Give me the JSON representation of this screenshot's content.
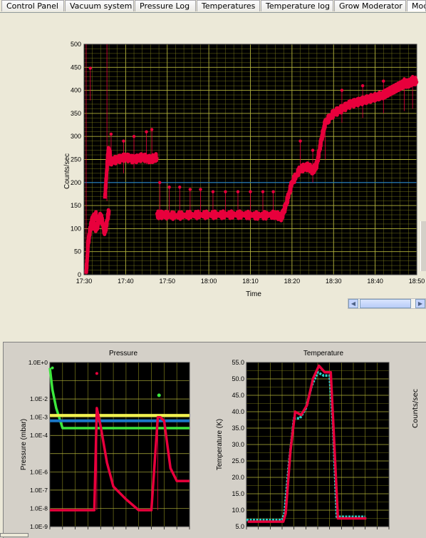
{
  "tabs": [
    {
      "label": "Control Panel",
      "active": false
    },
    {
      "label": "Vacuum system",
      "active": false
    },
    {
      "label": "Pressure Log",
      "active": false
    },
    {
      "label": "Temperatures",
      "active": false
    },
    {
      "label": "Temperature log",
      "active": false
    },
    {
      "label": "Grow Moderator",
      "active": false
    },
    {
      "label": "Mod",
      "active": true
    }
  ],
  "side_label": "Counts/sec",
  "colors": {
    "plot_bg": "#000000",
    "grid": "#8c8c1e",
    "red": "#e8003c",
    "blue_line": "#1a78c8",
    "green": "#3ce63c",
    "yellow": "#f0f050",
    "cyan": "#28d2c8"
  },
  "chart_data": [
    {
      "type": "scatter",
      "title": "",
      "xlabel": "Time",
      "ylabel": "Counts/sec",
      "x_ticks": [
        "17:30",
        "17:40",
        "17:50",
        "18:00",
        "18:10",
        "18:20",
        "18:30",
        "18:40",
        "18:50"
      ],
      "y_ticks": [
        "0",
        "50",
        "100",
        "150",
        "200",
        "250",
        "300",
        "350",
        "400",
        "450",
        "500"
      ],
      "ylim": [
        0,
        500
      ],
      "xlim_minutes": [
        0,
        80
      ],
      "reference_line": 200,
      "grid": true,
      "series": [
        {
          "color": "#e8003c",
          "segments": [
            {
              "x": [
                0.5,
                1.0,
                1.5,
                2.0,
                3.0
              ],
              "y": [
                2,
                70,
                100,
                120,
                130
              ]
            },
            {
              "x": [
                2,
                3,
                4,
                5,
                6
              ],
              "y": [
                110,
                100,
                130,
                90,
                140
              ]
            },
            {
              "x": [
                5,
                5.8,
                6.3
              ],
              "y": [
                165,
                270,
                260
              ]
            },
            {
              "x": [
                6,
                8,
                10,
                12,
                14,
                16,
                17.5
              ],
              "y": [
                245,
                250,
                255,
                250,
                255,
                250,
                255
              ]
            },
            {
              "x": [
                17.5,
                19,
                22,
                26,
                30,
                34,
                38,
                42,
                46,
                47.5
              ],
              "y": [
                130,
                130,
                128,
                130,
                130,
                130,
                130,
                128,
                130,
                125
              ]
            },
            {
              "x": [
                47.5,
                48.5,
                50,
                52,
                54,
                55,
                56,
                57,
                58,
                60,
                62,
                64,
                66,
                68,
                70,
                72,
                73,
                74,
                75,
                76,
                77,
                78,
                79,
                80
              ],
              "y": [
                125,
                150,
                200,
                230,
                235,
                225,
                240,
                290,
                330,
                350,
                360,
                370,
                375,
                380,
                385,
                390,
                395,
                400,
                405,
                410,
                415,
                415,
                420,
                420
              ]
            }
          ],
          "spikes": [
            {
              "x": 1.5,
              "y": 448
            },
            {
              "x": 6.5,
              "y": 305
            },
            {
              "x": 9.5,
              "y": 290
            },
            {
              "x": 12,
              "y": 300
            },
            {
              "x": 15,
              "y": 310
            },
            {
              "x": 16.3,
              "y": 315
            },
            {
              "x": 18.2,
              "y": 200
            },
            {
              "x": 20.5,
              "y": 190
            },
            {
              "x": 23,
              "y": 190
            },
            {
              "x": 25.5,
              "y": 185
            },
            {
              "x": 28,
              "y": 185
            },
            {
              "x": 31,
              "y": 180
            },
            {
              "x": 34,
              "y": 180
            },
            {
              "x": 37,
              "y": 180
            },
            {
              "x": 40,
              "y": 180
            },
            {
              "x": 43,
              "y": 180
            },
            {
              "x": 45.5,
              "y": 180
            },
            {
              "x": 52,
              "y": 290
            },
            {
              "x": 55,
              "y": 270
            },
            {
              "x": 58,
              "y": 320
            },
            {
              "x": 62,
              "y": 400
            },
            {
              "x": 67,
              "y": 410
            },
            {
              "x": 72,
              "y": 420
            },
            {
              "x": 77,
              "y": 425
            },
            {
              "x": 79,
              "y": 430
            }
          ]
        }
      ]
    },
    {
      "type": "scatter",
      "title": "Pressure",
      "xlabel": "",
      "ylabel": "Pressure (mbar)",
      "y_ticks": [
        "1.0E+0",
        "1.0E-2",
        "1.0E-3",
        "1.0E-4",
        "1.0E-6",
        "1.0E-7",
        "1.0E-8",
        "1.0E-9"
      ],
      "y_tick_exponents": [
        0,
        -1,
        -2,
        -3,
        -4,
        -5,
        -6,
        -7,
        -8,
        -9
      ],
      "ylim_log10": [
        -9,
        0
      ],
      "grid": true,
      "series": [
        {
          "color": "#3ce63c",
          "x": [
            0,
            0.2,
            0.5,
            1,
            2,
            3,
            4,
            5,
            6,
            7,
            8,
            9,
            10,
            11
          ],
          "y_log10": [
            -0.3,
            -1.5,
            -2.5,
            -3.6,
            -3.6,
            -3.6,
            -3.6,
            -3.6,
            -3.6,
            -3.6,
            -3.6,
            -3.6,
            -3.6,
            -3.6
          ]
        },
        {
          "color": "#f0f050",
          "x": [
            0,
            11
          ],
          "y_log10": [
            -2.9,
            -2.9
          ]
        },
        {
          "color": "#1a78c8",
          "x": [
            0,
            11
          ],
          "y_log10": [
            -3.2,
            -3.2
          ]
        },
        {
          "color": "#e8003c",
          "x": [
            0,
            1,
            2,
            3,
            3.5,
            3.7,
            4,
            4.5,
            5,
            6,
            7,
            8,
            8.5,
            8.7,
            9,
            9.5,
            10,
            10.5,
            11
          ],
          "y_log10": [
            -8.1,
            -8.1,
            -8.1,
            -8.1,
            -8.1,
            -2.5,
            -3.5,
            -5.5,
            -6.8,
            -7.5,
            -8.1,
            -8.1,
            -3.0,
            -3.0,
            -3.2,
            -5.8,
            -6.5,
            -6.5,
            -6.5
          ]
        }
      ]
    },
    {
      "type": "scatter",
      "title": "Temperature",
      "xlabel": "",
      "ylabel": "Temperature (K)",
      "y_ticks": [
        "5.0",
        "10.0",
        "15.0",
        "20.0",
        "25.0",
        "30.0",
        "35.0",
        "40.0",
        "45.0",
        "50.0",
        "55.0"
      ],
      "ylim": [
        5,
        55
      ],
      "grid": true,
      "series": [
        {
          "color": "#28d2c8",
          "x": [
            0,
            2,
            3,
            3.2,
            3.6,
            4,
            4.5,
            5,
            5.5,
            6,
            6.5,
            7,
            7.3,
            7.6,
            8,
            9,
            10
          ],
          "y": [
            7,
            7,
            7,
            9,
            25,
            38,
            38,
            41,
            48,
            52,
            51,
            51,
            35,
            8,
            8,
            8,
            8
          ]
        },
        {
          "color": "#e8003c",
          "x": [
            0,
            2,
            3,
            3.2,
            3.6,
            4,
            4.5,
            5,
            5.5,
            6,
            6.5,
            7,
            7.3,
            7.6,
            8,
            9,
            10
          ],
          "y": [
            6.5,
            6.5,
            6.5,
            9,
            28,
            40,
            39,
            42,
            50,
            54,
            52,
            52,
            30,
            7.5,
            7.5,
            7.5,
            7.5
          ]
        }
      ]
    }
  ]
}
